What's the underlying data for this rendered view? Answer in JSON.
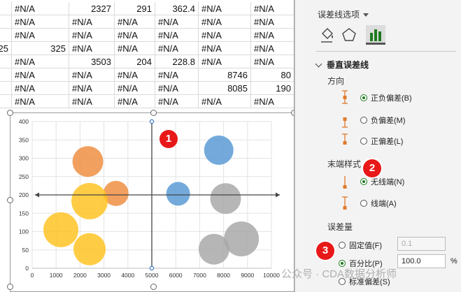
{
  "sheet": {
    "rows": [
      [
        "·",
        "#N/A",
        "2327",
        "291",
        "362.4",
        "#N/A",
        "#N/A"
      ],
      [
        "·",
        "#N/A",
        "#N/A",
        "#N/A",
        "#N/A",
        "#N/A",
        "#N/A"
      ],
      [
        "·",
        "#N/A",
        "#N/A",
        "#N/A",
        "#N/A",
        "#N/A",
        "#N/A"
      ],
      [
        "25",
        "325",
        "#N/A",
        "#N/A",
        "#N/A",
        "#N/A",
        "#N/A"
      ],
      [
        "·",
        "#N/A",
        "3503",
        "204",
        "228.8",
        "#N/A",
        "#N/A"
      ],
      [
        "·",
        "#N/A",
        "#N/A",
        "#N/A",
        "#N/A",
        "8746",
        "80"
      ],
      [
        "·",
        "#N/A",
        "#N/A",
        "#N/A",
        "#N/A",
        "8085",
        "190"
      ],
      [
        "·",
        "#N/A",
        "#N/A",
        "#N/A",
        "#N/A",
        "#N/A",
        "#N/A"
      ]
    ]
  },
  "chart_data": {
    "type": "scatter",
    "subtype": "bubble",
    "xlim": [
      0,
      10000
    ],
    "ylim": [
      0,
      400
    ],
    "xticks": [
      "0",
      "1000",
      "2000",
      "3000",
      "4000",
      "5000",
      "6000",
      "7000",
      "8000",
      "9000",
      "10000"
    ],
    "yticks": [
      "0",
      "50",
      "100",
      "150",
      "200",
      "250",
      "300",
      "350",
      "400"
    ],
    "grid": true,
    "crosshair": {
      "x": 5000,
      "y": 200
    },
    "series": [
      {
        "color": "#ef8f43",
        "points": [
          {
            "x": 2327,
            "y": 291,
            "r": 22
          },
          {
            "x": 3503,
            "y": 204,
            "r": 18
          }
        ]
      },
      {
        "color": "#ffc425",
        "points": [
          {
            "x": 2400,
            "y": 183,
            "r": 26
          },
          {
            "x": 1200,
            "y": 105,
            "r": 25
          },
          {
            "x": 2400,
            "y": 52,
            "r": 23
          }
        ]
      },
      {
        "color": "#5b9bd5",
        "points": [
          {
            "x": 7800,
            "y": 322,
            "r": 21
          },
          {
            "x": 6100,
            "y": 203,
            "r": 17
          }
        ]
      },
      {
        "color": "#a9a9a9",
        "points": [
          {
            "x": 8085,
            "y": 190,
            "r": 22
          },
          {
            "x": 7600,
            "y": 52,
            "r": 22
          },
          {
            "x": 8746,
            "y": 80,
            "r": 25
          }
        ]
      }
    ]
  },
  "badges": [
    "1",
    "2",
    "3"
  ],
  "pane": {
    "title": "误差线选项",
    "section": "垂直误差线",
    "direction_label": "方向",
    "direction_options": [
      "正负偏差(B)",
      "负偏差(M)",
      "正偏差(L)"
    ],
    "direction_selected": 0,
    "endstyle_label": "末端样式",
    "endstyle_options": [
      "无线端(N)",
      "线端(A)"
    ],
    "endstyle_selected": 0,
    "amount_label": "误差量",
    "fixed_label": "固定值(F)",
    "fixed_value": "0.1",
    "percent_label": "百分比(P)",
    "percent_value": "100.0",
    "percent_unit": "%",
    "stddev_label": "标准偏差(S)"
  },
  "watermark": "公众号 · CDA数据分析师",
  "colors": {
    "accent": "#1f7a1f",
    "badge": "#e81818"
  }
}
